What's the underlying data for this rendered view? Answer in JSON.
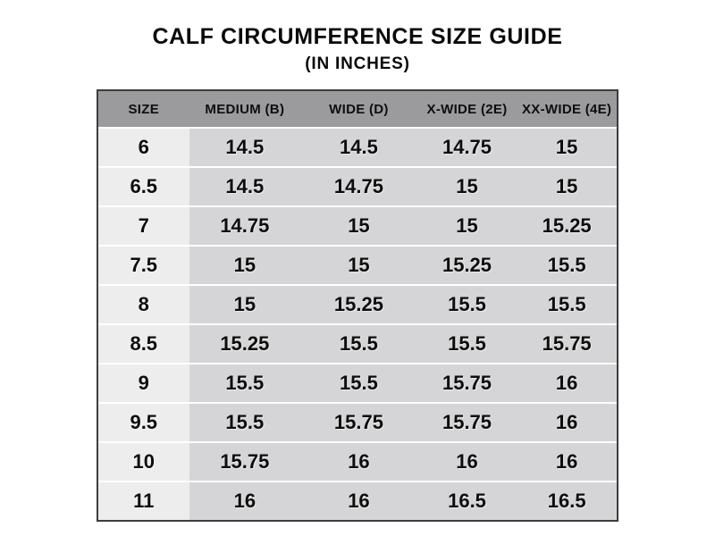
{
  "page": {
    "title": "CALF CIRCUMFERENCE SIZE GUIDE",
    "subtitle": "(IN INCHES)"
  },
  "table": {
    "headers": [
      "SIZE",
      "MEDIUM (B)",
      "WIDE (D)",
      "X-WIDE (2E)",
      "XX-WIDE (4E)"
    ],
    "rows": [
      {
        "size": "6",
        "values": [
          "14.5",
          "14.5",
          "14.75",
          "15"
        ]
      },
      {
        "size": "6.5",
        "values": [
          "14.5",
          "14.75",
          "15",
          "15"
        ]
      },
      {
        "size": "7",
        "values": [
          "14.75",
          "15",
          "15",
          "15.25"
        ]
      },
      {
        "size": "7.5",
        "values": [
          "15",
          "15",
          "15.25",
          "15.5"
        ]
      },
      {
        "size": "8",
        "values": [
          "15",
          "15.25",
          "15.5",
          "15.5"
        ]
      },
      {
        "size": "8.5",
        "values": [
          "15.25",
          "15.5",
          "15.5",
          "15.75"
        ]
      },
      {
        "size": "9",
        "values": [
          "15.5",
          "15.5",
          "15.75",
          "16"
        ]
      },
      {
        "size": "9.5",
        "values": [
          "15.5",
          "15.75",
          "15.75",
          "16"
        ]
      },
      {
        "size": "10",
        "values": [
          "15.75",
          "16",
          "16",
          "16"
        ]
      },
      {
        "size": "11",
        "values": [
          "16",
          "16",
          "16.5",
          "16.5"
        ]
      }
    ]
  },
  "colors": {
    "header_bg": "#9b9b9d",
    "size_column_bg": "#ededee",
    "data_cell_bg": "#d5d5d7",
    "row_separator": "#ffffff",
    "table_border": "#3c3c3e",
    "text": "#0d0d0d",
    "page_background": "#ffffff"
  },
  "chart_data": {
    "type": "table",
    "title": "CALF CIRCUMFERENCE SIZE GUIDE",
    "subtitle": "(IN INCHES)",
    "columns": [
      "SIZE",
      "MEDIUM (B)",
      "WIDE (D)",
      "X-WIDE (2E)",
      "XX-WIDE (4E)"
    ],
    "rows": [
      [
        "6",
        14.5,
        14.5,
        14.75,
        15
      ],
      [
        "6.5",
        14.5,
        14.75,
        15,
        15
      ],
      [
        "7",
        14.75,
        15,
        15,
        15.25
      ],
      [
        "7.5",
        15,
        15,
        15.25,
        15.5
      ],
      [
        "8",
        15,
        15.25,
        15.5,
        15.5
      ],
      [
        "8.5",
        15.25,
        15.5,
        15.5,
        15.75
      ],
      [
        "9",
        15.5,
        15.5,
        15.75,
        16
      ],
      [
        "9.5",
        15.5,
        15.75,
        15.75,
        16
      ],
      [
        "10",
        15.75,
        16,
        16,
        16
      ],
      [
        "11",
        16,
        16,
        16.5,
        16.5
      ]
    ],
    "units": "inches",
    "legend_position": "none",
    "grid": "row-separators-only"
  }
}
